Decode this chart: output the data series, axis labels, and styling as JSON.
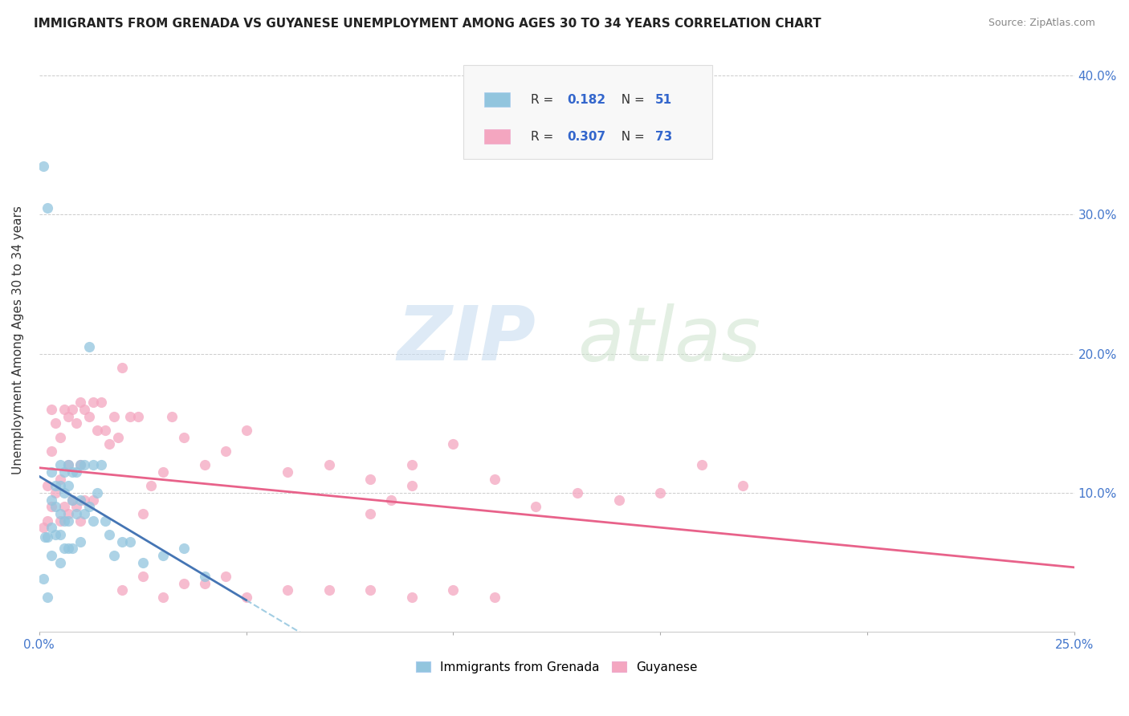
{
  "title": "IMMIGRANTS FROM GRENADA VS GUYANESE UNEMPLOYMENT AMONG AGES 30 TO 34 YEARS CORRELATION CHART",
  "source": "Source: ZipAtlas.com",
  "ylabel": "Unemployment Among Ages 30 to 34 years",
  "xlim": [
    0.0,
    0.25
  ],
  "ylim": [
    0.0,
    0.42
  ],
  "x_ticks": [
    0.0,
    0.05,
    0.1,
    0.15,
    0.2,
    0.25
  ],
  "x_tick_labels": [
    "0.0%",
    "",
    "",
    "",
    "",
    "25.0%"
  ],
  "y_ticks_right": [
    0.1,
    0.2,
    0.3,
    0.4
  ],
  "y_tick_labels_right": [
    "10.0%",
    "20.0%",
    "30.0%",
    "40.0%"
  ],
  "grenada_color": "#92c5de",
  "guyanese_color": "#f4a6c0",
  "grenada_line_color": "#4575b4",
  "guyanese_line_color": "#e8628a",
  "grenada_dashed_color": "#92c5de",
  "grenada_R": 0.182,
  "grenada_N": 51,
  "guyanese_R": 0.307,
  "guyanese_N": 73,
  "watermark_zip": "ZIP",
  "watermark_atlas": "atlas",
  "grenada_x": [
    0.001,
    0.0015,
    0.002,
    0.002,
    0.003,
    0.003,
    0.003,
    0.003,
    0.004,
    0.004,
    0.004,
    0.005,
    0.005,
    0.005,
    0.005,
    0.005,
    0.006,
    0.006,
    0.006,
    0.006,
    0.007,
    0.007,
    0.007,
    0.007,
    0.008,
    0.008,
    0.008,
    0.009,
    0.009,
    0.01,
    0.01,
    0.01,
    0.011,
    0.011,
    0.012,
    0.012,
    0.013,
    0.013,
    0.014,
    0.015,
    0.016,
    0.017,
    0.018,
    0.02,
    0.022,
    0.025,
    0.03,
    0.035,
    0.04,
    0.001,
    0.002
  ],
  "grenada_y": [
    0.335,
    0.068,
    0.305,
    0.068,
    0.115,
    0.095,
    0.075,
    0.055,
    0.105,
    0.09,
    0.07,
    0.12,
    0.105,
    0.085,
    0.07,
    0.05,
    0.115,
    0.1,
    0.08,
    0.06,
    0.12,
    0.105,
    0.08,
    0.06,
    0.115,
    0.095,
    0.06,
    0.115,
    0.085,
    0.12,
    0.095,
    0.065,
    0.12,
    0.085,
    0.205,
    0.09,
    0.12,
    0.08,
    0.1,
    0.12,
    0.08,
    0.07,
    0.055,
    0.065,
    0.065,
    0.05,
    0.055,
    0.06,
    0.04,
    0.038,
    0.025
  ],
  "guyanese_x": [
    0.001,
    0.002,
    0.002,
    0.003,
    0.003,
    0.003,
    0.004,
    0.004,
    0.005,
    0.005,
    0.005,
    0.006,
    0.006,
    0.007,
    0.007,
    0.007,
    0.008,
    0.008,
    0.009,
    0.009,
    0.01,
    0.01,
    0.01,
    0.011,
    0.011,
    0.012,
    0.013,
    0.013,
    0.014,
    0.015,
    0.016,
    0.017,
    0.018,
    0.019,
    0.02,
    0.022,
    0.024,
    0.025,
    0.027,
    0.03,
    0.032,
    0.035,
    0.04,
    0.045,
    0.05,
    0.06,
    0.07,
    0.08,
    0.09,
    0.1,
    0.11,
    0.12,
    0.13,
    0.14,
    0.15,
    0.16,
    0.17,
    0.08,
    0.085,
    0.09,
    0.02,
    0.025,
    0.03,
    0.035,
    0.04,
    0.045,
    0.05,
    0.06,
    0.07,
    0.08,
    0.09,
    0.1,
    0.11
  ],
  "guyanese_y": [
    0.075,
    0.105,
    0.08,
    0.16,
    0.13,
    0.09,
    0.15,
    0.1,
    0.14,
    0.11,
    0.08,
    0.16,
    0.09,
    0.155,
    0.12,
    0.085,
    0.16,
    0.095,
    0.15,
    0.09,
    0.165,
    0.12,
    0.08,
    0.16,
    0.095,
    0.155,
    0.165,
    0.095,
    0.145,
    0.165,
    0.145,
    0.135,
    0.155,
    0.14,
    0.19,
    0.155,
    0.155,
    0.085,
    0.105,
    0.115,
    0.155,
    0.14,
    0.12,
    0.13,
    0.145,
    0.115,
    0.12,
    0.11,
    0.12,
    0.135,
    0.11,
    0.09,
    0.1,
    0.095,
    0.1,
    0.12,
    0.105,
    0.085,
    0.095,
    0.105,
    0.03,
    0.04,
    0.025,
    0.035,
    0.035,
    0.04,
    0.025,
    0.03,
    0.03,
    0.03,
    0.025,
    0.03,
    0.025
  ]
}
